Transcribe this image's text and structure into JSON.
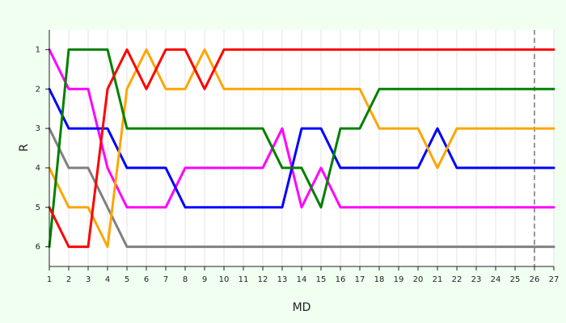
{
  "chart_data": {
    "type": "line",
    "xlabel": "MD",
    "ylabel": "R",
    "xlim": [
      1,
      27
    ],
    "ylim": [
      6.5,
      0.5
    ],
    "x_ticks": [
      1,
      2,
      3,
      4,
      5,
      6,
      7,
      8,
      9,
      10,
      11,
      12,
      13,
      14,
      15,
      16,
      17,
      18,
      19,
      20,
      21,
      22,
      23,
      24,
      25,
      26,
      27
    ],
    "y_ticks": [
      1,
      2,
      3,
      4,
      5,
      6
    ],
    "y_reversed": true,
    "vertical_grid": true,
    "horizontal_grid": false,
    "reference_line": {
      "x": 26,
      "style": "dashed",
      "color": "#777777"
    },
    "background_color": "#f0fff0",
    "plot_background_color": "#ffffff",
    "x": [
      1,
      2,
      3,
      4,
      5,
      6,
      7,
      8,
      9,
      10,
      11,
      12,
      13,
      14,
      15,
      16,
      17,
      18,
      19,
      20,
      21,
      22,
      23,
      24,
      25,
      26,
      27
    ],
    "series": [
      {
        "color": "#808080",
        "values": [
          3,
          4,
          4,
          5,
          6,
          6,
          6,
          6,
          6,
          6,
          6,
          6,
          6,
          6,
          6,
          6,
          6,
          6,
          6,
          6,
          6,
          6,
          6,
          6,
          6,
          6,
          6
        ]
      },
      {
        "color": "#ff00ff",
        "values": [
          1,
          2,
          2,
          4,
          5,
          5,
          5,
          4,
          4,
          4,
          4,
          4,
          3,
          5,
          4,
          5,
          5,
          5,
          5,
          5,
          5,
          5,
          5,
          5,
          5,
          5,
          5
        ]
      },
      {
        "color": "#0000ff",
        "values": [
          2,
          3,
          3,
          3,
          4,
          4,
          4,
          5,
          5,
          5,
          5,
          5,
          5,
          3,
          3,
          4,
          4,
          4,
          4,
          4,
          3,
          4,
          4,
          4,
          4,
          4,
          4
        ]
      },
      {
        "color": "#ffa500",
        "values": [
          4,
          5,
          5,
          6,
          2,
          1,
          2,
          2,
          1,
          2,
          2,
          2,
          2,
          2,
          2,
          2,
          2,
          3,
          3,
          3,
          4,
          3,
          3,
          3,
          3,
          3,
          3
        ]
      },
      {
        "color": "#008000",
        "values": [
          6,
          1,
          1,
          1,
          3,
          3,
          3,
          3,
          3,
          3,
          3,
          3,
          4,
          4,
          5,
          3,
          3,
          2,
          2,
          2,
          2,
          2,
          2,
          2,
          2,
          2,
          2
        ]
      },
      {
        "color": "#ff0000",
        "values": [
          5,
          6,
          6,
          2,
          1,
          2,
          1,
          1,
          2,
          1,
          1,
          1,
          1,
          1,
          1,
          1,
          1,
          1,
          1,
          1,
          1,
          1,
          1,
          1,
          1,
          1,
          1
        ]
      }
    ]
  }
}
